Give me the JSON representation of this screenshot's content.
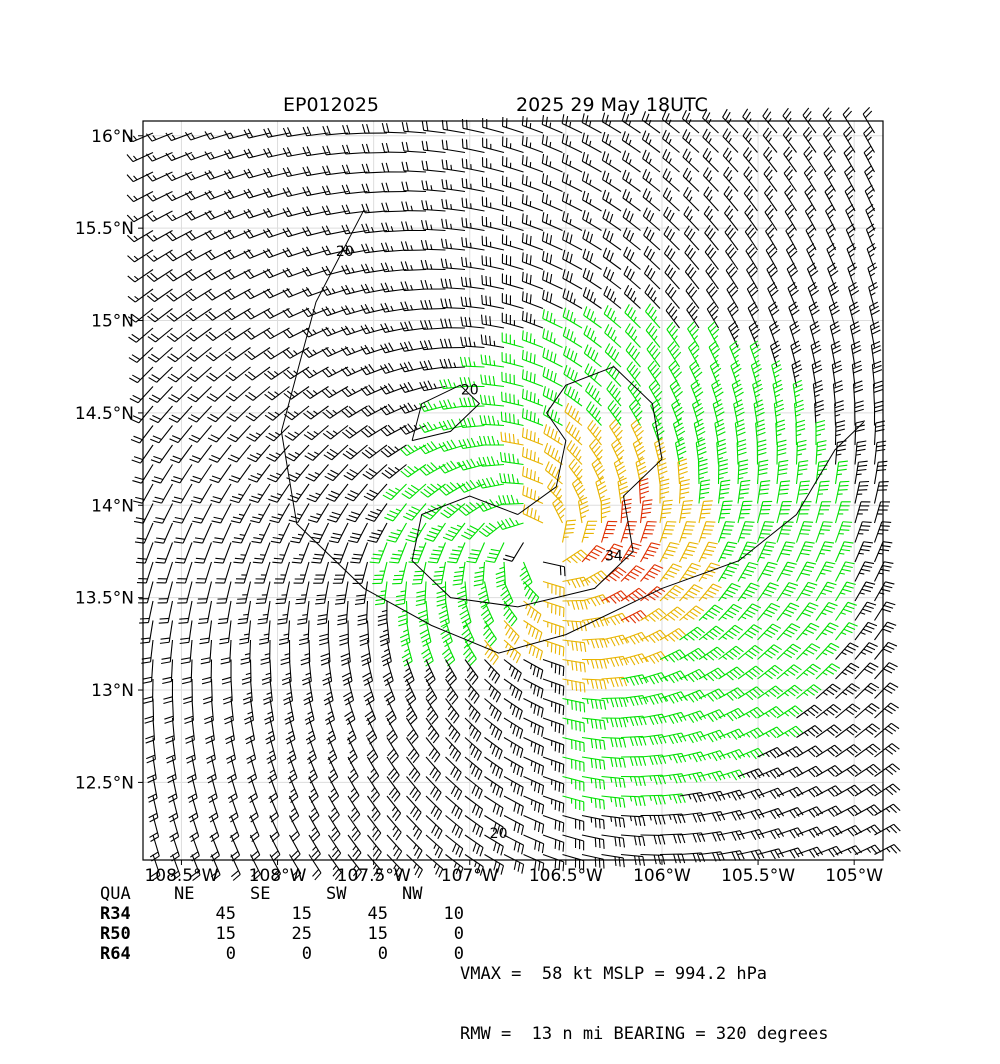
{
  "title": {
    "storm_id": "EP012025",
    "datetime": "2025 29 May 18UTC"
  },
  "map": {
    "lon_range": [
      -108.7,
      -104.85
    ],
    "lat_range": [
      12.08,
      16.08
    ],
    "lon_ticks": [
      {
        "value": -108.5,
        "label": "108.5°W"
      },
      {
        "value": -108.0,
        "label": "108°W"
      },
      {
        "value": -107.5,
        "label": "107.5°W"
      },
      {
        "value": -107.0,
        "label": "107°W"
      },
      {
        "value": -106.5,
        "label": "106.5°W"
      },
      {
        "value": -106.0,
        "label": "106°W"
      },
      {
        "value": -105.5,
        "label": "105.5°W"
      },
      {
        "value": -105.0,
        "label": "105°W"
      }
    ],
    "lat_ticks": [
      {
        "value": 16.0,
        "label": "16°N"
      },
      {
        "value": 15.5,
        "label": "15.5°N"
      },
      {
        "value": 15.0,
        "label": "15°N"
      },
      {
        "value": 14.5,
        "label": "14.5°N"
      },
      {
        "value": 14.0,
        "label": "14°N"
      },
      {
        "value": 13.5,
        "label": "13.5°N"
      },
      {
        "value": 13.0,
        "label": "13°N"
      },
      {
        "value": 12.5,
        "label": "12.5°N"
      }
    ],
    "gridlines": true,
    "center": {
      "lon": -106.63,
      "lat": 13.78
    },
    "wind_colors": {
      "below_34": "#000000",
      "34_to_50": "#00e000",
      "50_to_64": "#e8b400",
      "64_plus": "#e03000"
    },
    "contours": [
      {
        "label": "20",
        "label_lon": -107.65,
        "label_lat": 15.35
      },
      {
        "label": "20",
        "label_lon": -107.0,
        "label_lat": 14.6
      },
      {
        "label": "20",
        "label_lon": -106.85,
        "label_lat": 12.2
      },
      {
        "label": "34",
        "label_lon": -106.25,
        "label_lat": 13.7
      }
    ]
  },
  "radii": {
    "headers": [
      "QUA",
      "NE",
      "SE",
      "SW",
      "NW"
    ],
    "rows": [
      {
        "label": "R34",
        "values": [
          "45",
          "15",
          "45",
          "10"
        ]
      },
      {
        "label": "R50",
        "values": [
          "15",
          "25",
          "15",
          "0"
        ]
      },
      {
        "label": "R64",
        "values": [
          "0",
          "0",
          "0",
          "0"
        ]
      }
    ]
  },
  "stats": {
    "line1": "VMAX =  58 kt MSLP = 994.2 hPa",
    "line2": "RMW =  13 n mi BEARING = 320 degrees"
  }
}
